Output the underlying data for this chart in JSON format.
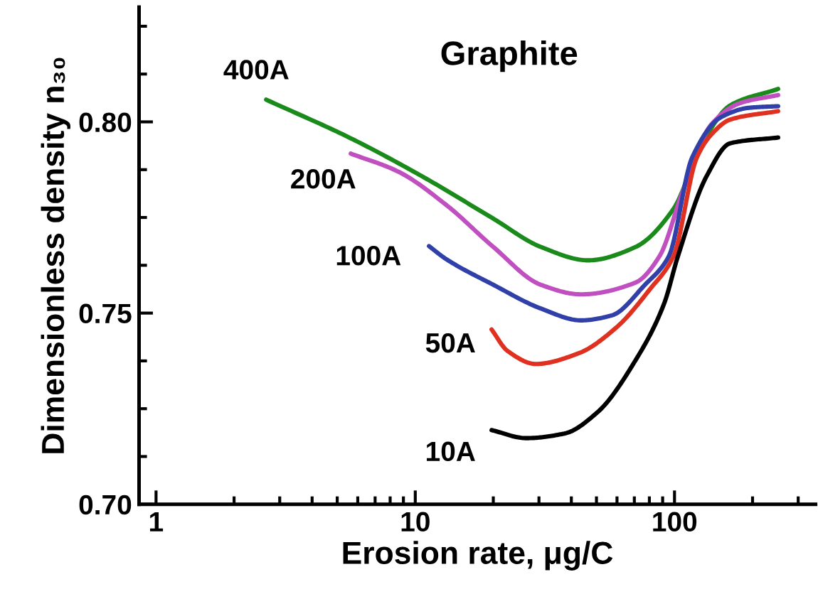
{
  "chart_data": {
    "type": "line",
    "title": "Graphite",
    "xlabel": "Erosion rate, μg/C",
    "ylabel": "Dimensionless density n₃₀",
    "log": "x",
    "grid": false,
    "marker": "none",
    "line_style": "solid",
    "xlim": [
      0.86,
      350
    ],
    "ylim": [
      0.7,
      0.83
    ],
    "xticks": [
      1,
      {
        "value": 2,
        "label": null
      },
      {
        "value": 3,
        "label": null
      },
      {
        "value": 4,
        "label": null
      },
      {
        "value": 5,
        "label": null
      },
      {
        "value": 6,
        "label": null
      },
      {
        "value": 7,
        "label": null
      },
      {
        "value": 8,
        "label": null
      },
      {
        "value": 9,
        "label": null
      },
      10,
      {
        "value": 20,
        "label": null
      },
      {
        "value": 30,
        "label": null
      },
      {
        "value": 40,
        "label": null
      },
      {
        "value": 50,
        "label": null
      },
      {
        "value": 60,
        "label": null
      },
      {
        "value": 70,
        "label": null
      },
      {
        "value": 80,
        "label": null
      },
      {
        "value": 90,
        "label": null
      },
      100,
      {
        "value": 200,
        "label": null
      },
      {
        "value": 300,
        "label": null
      }
    ],
    "yticks": [
      {
        "value": 0.7,
        "label": "0.70"
      },
      {
        "value": 0.7125,
        "label": null
      },
      {
        "value": 0.725,
        "label": null
      },
      {
        "value": 0.7375,
        "label": null
      },
      {
        "value": 0.75,
        "label": "0.75"
      },
      {
        "value": 0.7625,
        "label": null
      },
      {
        "value": 0.775,
        "label": null
      },
      {
        "value": 0.7875,
        "label": null
      },
      {
        "value": 0.8,
        "label": "0.80"
      },
      {
        "value": 0.8125,
        "label": null
      },
      {
        "value": 0.825,
        "label": null
      }
    ],
    "series": [
      {
        "name": "400A",
        "color": "#1a8a1a",
        "x": [
          2.66,
          5.64,
          10.6,
          20,
          30.5,
          46.4,
          70.8,
          99,
          128,
          164,
          251
        ],
        "values": [
          0.8058,
          0.7957,
          0.7858,
          0.7747,
          0.7673,
          0.7638,
          0.7673,
          0.7772,
          0.7944,
          0.8043,
          0.8086
        ]
      },
      {
        "name": "200A",
        "color": "#c050c0",
        "x": [
          5.64,
          8.59,
          13.1,
          20,
          30.5,
          43.6,
          70.8,
          87.4,
          108,
          139,
          179,
          251
        ],
        "values": [
          0.7917,
          0.787,
          0.7784,
          0.7673,
          0.7574,
          0.7549,
          0.758,
          0.7648,
          0.7821,
          0.7994,
          0.8049,
          0.807
        ]
      },
      {
        "name": "100A",
        "color": "#3040a8",
        "x": [
          11.3,
          13.1,
          20,
          30.5,
          43.6,
          57.3,
          76.9,
          95,
          117,
          151,
          195,
          251
        ],
        "values": [
          0.7675,
          0.7642,
          0.7574,
          0.7512,
          0.7481,
          0.7494,
          0.7574,
          0.7648,
          0.7907,
          0.8012,
          0.8037,
          0.8041
        ]
      },
      {
        "name": "50A",
        "color": "#e03020",
        "x": [
          19.7,
          22.7,
          29.2,
          42.7,
          59.8,
          80.3,
          99,
          122,
          140,
          164,
          251
        ],
        "values": [
          0.7457,
          0.7401,
          0.7367,
          0.7395,
          0.7463,
          0.7562,
          0.7648,
          0.7907,
          0.797,
          0.8006,
          0.8028
        ]
      },
      {
        "name": "10A",
        "color": "#000000",
        "x": [
          19.7,
          26.8,
          37.6,
          50.5,
          70.8,
          91.2,
          103,
          133,
          164,
          251
        ],
        "values": [
          0.7194,
          0.7173,
          0.7185,
          0.7241,
          0.7377,
          0.7525,
          0.7648,
          0.7858,
          0.7944,
          0.7959
        ]
      }
    ]
  }
}
